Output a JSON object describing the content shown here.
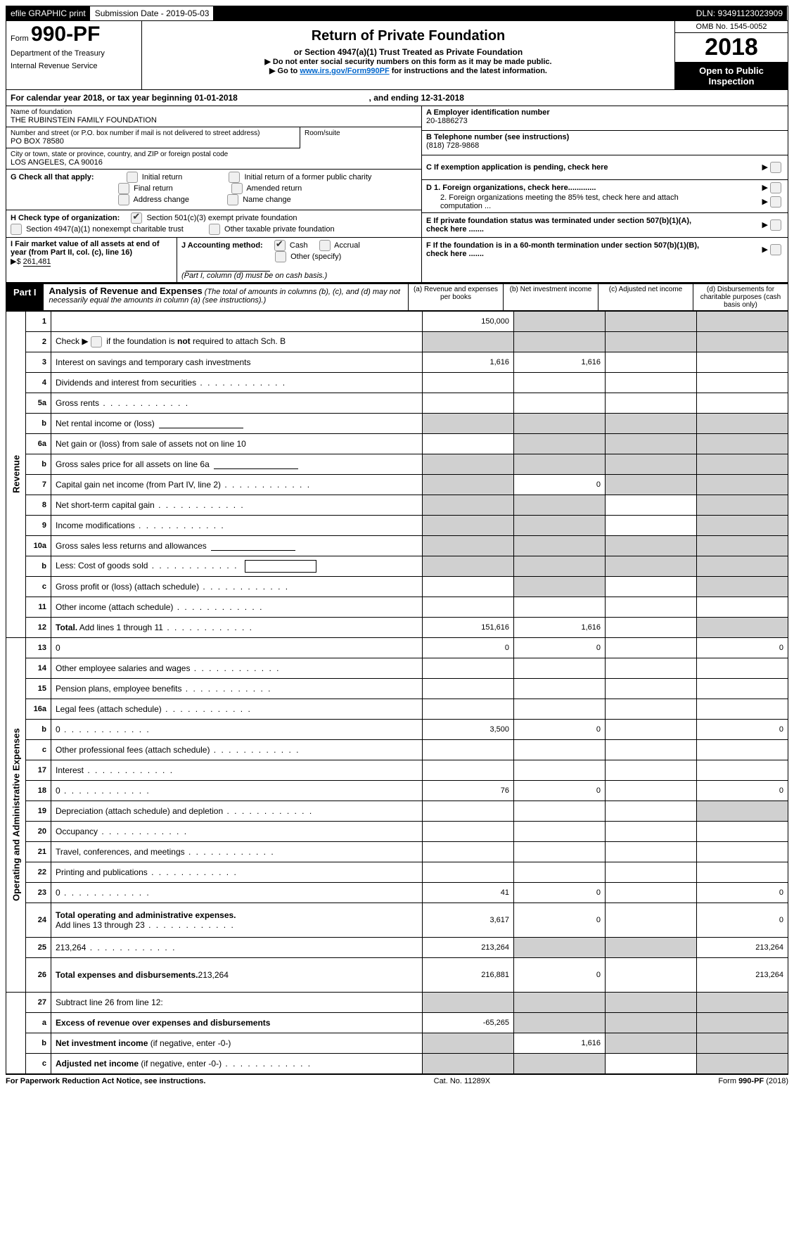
{
  "topbar": {
    "efile": "efile GRAPHIC print",
    "sub_label": "Submission Date - 2019-05-03",
    "dln": "DLN: 93491123023909"
  },
  "header": {
    "form_prefix": "Form",
    "form_number": "990-PF",
    "dept_line1": "Department of the Treasury",
    "dept_line2": "Internal Revenue Service",
    "title": "Return of Private Foundation",
    "subtitle": "or Section 4947(a)(1) Trust Treated as Private Foundation",
    "note1": "▶ Do not enter social security numbers on this form as it may be made public.",
    "note2_pre": "▶ Go to ",
    "note2_link": "www.irs.gov/Form990PF",
    "note2_post": " for instructions and the latest information.",
    "omb": "OMB No. 1545-0052",
    "year": "2018",
    "open": "Open to Public Inspection"
  },
  "cal": {
    "text_pre": "For calendar year 2018, or tax year beginning ",
    "begin": "01-01-2018",
    "mid": " , and ending ",
    "end": "12-31-2018"
  },
  "info": {
    "name_label": "Name of foundation",
    "name": "THE RUBINSTEIN FAMILY FOUNDATION",
    "addr_label": "Number and street (or P.O. box number if mail is not delivered to street address)",
    "addr": "PO BOX 78580",
    "room_label": "Room/suite",
    "city_label": "City or town, state or province, country, and ZIP or foreign postal code",
    "city": "LOS ANGELES, CA   90016",
    "g_label": "G Check all that apply:",
    "g_initial": "Initial return",
    "g_initial_former": "Initial return of a former public charity",
    "g_final": "Final return",
    "g_amended": "Amended return",
    "g_addr": "Address change",
    "g_name": "Name change",
    "h_label": "H Check type of organization:",
    "h_501": "Section 501(c)(3) exempt private foundation",
    "h_4947": "Section 4947(a)(1) nonexempt charitable trust",
    "h_other": "Other taxable private foundation",
    "i_label": "I Fair market value of all assets at end of year (from Part II, col. (c), line 16)",
    "i_value": "261,481",
    "j_label": "J Accounting method:",
    "j_cash": "Cash",
    "j_accrual": "Accrual",
    "j_other": "Other (specify)",
    "j_note": "(Part I, column (d) must be on cash basis.)",
    "a_label": "A Employer identification number",
    "a_value": "20-1886273",
    "b_label": "B Telephone number (see instructions)",
    "b_value": "(818) 728-9868",
    "c_label": "C  If exemption application is pending, check here",
    "d1_label": "D 1. Foreign organizations, check here.............",
    "d2_label": "2. Foreign organizations meeting the 85% test, check here and attach computation ...",
    "e_label": "E  If private foundation status was terminated under section 507(b)(1)(A), check here .......",
    "f_label": "F  If the foundation is in a 60-month termination under section 507(b)(1)(B), check here ......."
  },
  "part1": {
    "label": "Part I",
    "title": "Analysis of Revenue and Expenses",
    "note": "(The total of amounts in columns (b), (c), and (d) may not necessarily equal the amounts in column (a) (see instructions).)",
    "col_a": "(a)   Revenue and expenses per books",
    "col_b": "(b)   Net investment income",
    "col_c": "(c)   Adjusted net income",
    "col_d": "(d)   Disbursements for charitable purposes (cash basis only)",
    "revenue_label": "Revenue",
    "expenses_label": "Operating and Administrative Expenses"
  },
  "rows": {
    "r1": {
      "n": "1",
      "d": "",
      "a": "150,000",
      "b": "",
      "c": "",
      "grey_bcd": true
    },
    "r2": {
      "n": "2",
      "d": "Check ▶ ☐ if the foundation is not required to attach Sch. B",
      "inline_cb": true,
      "d_text_pre": "Check ▶",
      "d_text_post": " if the foundation is ",
      "d_bold": "not",
      "d_text_end": " required to attach Sch. B",
      "grey_all": true
    },
    "r3": {
      "n": "3",
      "d": "Interest on savings and temporary cash investments",
      "a": "1,616",
      "b": "1,616"
    },
    "r4": {
      "n": "4",
      "d": "Dividends and interest from securities",
      "dots": true
    },
    "r5a": {
      "n": "5a",
      "d": "Gross rents",
      "dots": true
    },
    "r5b": {
      "n": "b",
      "d": "Net rental income or (loss)",
      "underline": true,
      "grey_all": true
    },
    "r6a": {
      "n": "6a",
      "d": "Net gain or (loss) from sale of assets not on line 10",
      "grey_bcd": true
    },
    "r6b": {
      "n": "b",
      "d": "Gross sales price for all assets on line 6a",
      "underline": true,
      "grey_all": true
    },
    "r7": {
      "n": "7",
      "d": "Capital gain net income (from Part IV, line 2)",
      "dots": true,
      "b": "0",
      "grey_a": true,
      "grey_cd": true
    },
    "r8": {
      "n": "8",
      "d": "Net short-term capital gain",
      "dots": true,
      "grey_ab": true,
      "grey_d": true
    },
    "r9": {
      "n": "9",
      "d": "Income modifications",
      "dots": true,
      "grey_ab": true,
      "grey_d": true
    },
    "r10a": {
      "n": "10a",
      "d": "Gross sales less returns and allowances",
      "underline": true,
      "grey_all": true
    },
    "r10b": {
      "n": "b",
      "d": "Less: Cost of goods sold",
      "dots": true,
      "underline_box": true,
      "grey_all": true
    },
    "r10c": {
      "n": "c",
      "d": "Gross profit or (loss) (attach schedule)",
      "dots": true,
      "grey_b": true,
      "grey_d": true
    },
    "r11": {
      "n": "11",
      "d": "Other income (attach schedule)",
      "dots": true
    },
    "r12": {
      "n": "12",
      "d_bold": "Total.",
      "d": " Add lines 1 through 11",
      "dots": true,
      "a": "151,616",
      "b": "1,616",
      "grey_d": true
    },
    "r13": {
      "n": "13",
      "d": "0",
      "a": "0",
      "b": "0"
    },
    "r14": {
      "n": "14",
      "d": "Other employee salaries and wages",
      "dots": true
    },
    "r15": {
      "n": "15",
      "d": "Pension plans, employee benefits",
      "dots": true
    },
    "r16a": {
      "n": "16a",
      "d": "Legal fees (attach schedule)",
      "dots": true
    },
    "r16b": {
      "n": "b",
      "d": "0",
      "dots": true,
      "a": "3,500",
      "b": "0"
    },
    "r16c": {
      "n": "c",
      "d": "Other professional fees (attach schedule)",
      "dots": true
    },
    "r17": {
      "n": "17",
      "d": "Interest",
      "dots": true
    },
    "r18": {
      "n": "18",
      "d": "0",
      "dots": true,
      "a": "76",
      "b": "0"
    },
    "r19": {
      "n": "19",
      "d": "Depreciation (attach schedule) and depletion",
      "dots": true,
      "grey_d": true
    },
    "r20": {
      "n": "20",
      "d": "Occupancy",
      "dots": true
    },
    "r21": {
      "n": "21",
      "d": "Travel, conferences, and meetings",
      "dots": true
    },
    "r22": {
      "n": "22",
      "d": "Printing and publications",
      "dots": true
    },
    "r23": {
      "n": "23",
      "d": "0",
      "dots": true,
      "a": "41",
      "b": "0"
    },
    "r24": {
      "n": "24",
      "d_bold": "Total operating and administrative expenses.",
      "d2": "Add lines 13 through 23",
      "dots": true,
      "a": "3,617",
      "b": "0",
      "d": "0",
      "two_line": true
    },
    "r25": {
      "n": "25",
      "d": "213,264",
      "dots": true,
      "a": "213,264",
      "grey_bc": true
    },
    "r26": {
      "n": "26",
      "d_bold": "Total expenses and disbursements.",
      "d": "213,264",
      "a": "216,881",
      "b": "0",
      "tall": true
    },
    "r27": {
      "n": "27",
      "d": "Subtract line 26 from line 12:",
      "grey_all": true
    },
    "r27a": {
      "n": "a",
      "d_bold": "Excess of revenue over expenses and disbursements",
      "a": "-65,265",
      "grey_bcd": true
    },
    "r27b": {
      "n": "b",
      "d_bold": "Net investment income",
      "d": " (if negative, enter -0-)",
      "grey_a": true,
      "b": "1,616",
      "grey_cd": true
    },
    "r27c": {
      "n": "c",
      "d_bold": "Adjusted net income",
      "d": " (if negative, enter -0-)",
      "dots": true,
      "grey_ab": true,
      "grey_d": true
    }
  },
  "footer": {
    "left": "For Paperwork Reduction Act Notice, see instructions.",
    "mid": "Cat. No. 11289X",
    "right_pre": "Form ",
    "right_bold": "990-PF",
    "right_post": " (2018)"
  }
}
